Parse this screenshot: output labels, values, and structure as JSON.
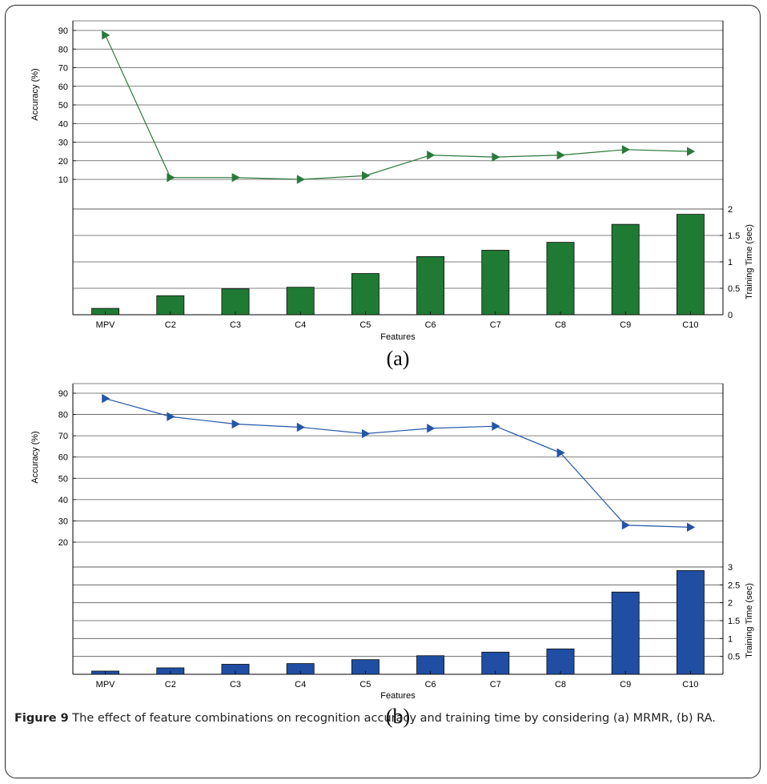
{
  "chart_data": [
    {
      "panel_label": "(a)",
      "type": "bar+line",
      "categories": [
        "MPV",
        "C2",
        "C3",
        "C4",
        "C5",
        "C6",
        "C7",
        "C8",
        "C9",
        "C10"
      ],
      "xlabel": "Features",
      "accuracy": {
        "ylabel": "Accuracy (%)",
        "ticks": [
          10,
          20,
          30,
          40,
          50,
          60,
          70,
          80,
          90
        ],
        "ylim": [
          10,
          90
        ],
        "values": [
          87.5,
          11,
          11,
          10,
          12,
          23,
          22,
          23,
          26,
          25
        ],
        "color": "#2a7a3a"
      },
      "training_time": {
        "ylabel": "Training Time (sec)",
        "ticks": [
          "0",
          "0.5",
          "1",
          "1.5",
          "2"
        ],
        "tick_values": [
          0,
          0.5,
          1,
          1.5,
          2
        ],
        "ylim": [
          0,
          2
        ],
        "values": [
          0.12,
          0.36,
          0.49,
          0.52,
          0.78,
          1.1,
          1.22,
          1.37,
          1.71,
          1.9
        ],
        "color": "#1f7a33"
      }
    },
    {
      "panel_label": "(b)",
      "type": "bar+line",
      "categories": [
        "MPV",
        "C2",
        "C3",
        "C4",
        "C5",
        "C6",
        "C7",
        "C8",
        "C9",
        "C10"
      ],
      "xlabel": "Features",
      "accuracy": {
        "ylabel": "Accuracy (%)",
        "ticks": [
          20,
          30,
          40,
          50,
          60,
          70,
          80,
          90
        ],
        "ylim": [
          20,
          90
        ],
        "values": [
          87.5,
          79,
          75.5,
          74,
          71,
          73.5,
          74.5,
          62,
          28,
          27
        ],
        "color": "#2356a8"
      },
      "training_time": {
        "ylabel": "Training Time (sec)",
        "ticks": [
          "0.5",
          "1",
          "1.5",
          "2",
          "2.5",
          "3"
        ],
        "tick_values": [
          0.5,
          1,
          1.5,
          2,
          2.5,
          3
        ],
        "ylim": [
          0,
          3
        ],
        "values": [
          0.09,
          0.18,
          0.28,
          0.3,
          0.41,
          0.52,
          0.62,
          0.71,
          2.3,
          2.9
        ],
        "color": "#1f4ea3"
      }
    }
  ],
  "caption": {
    "label": "Figure 9",
    "text": " The effect of feature combinations on recognition accuracy and training time by considering (a) MRMR, (b) RA."
  }
}
